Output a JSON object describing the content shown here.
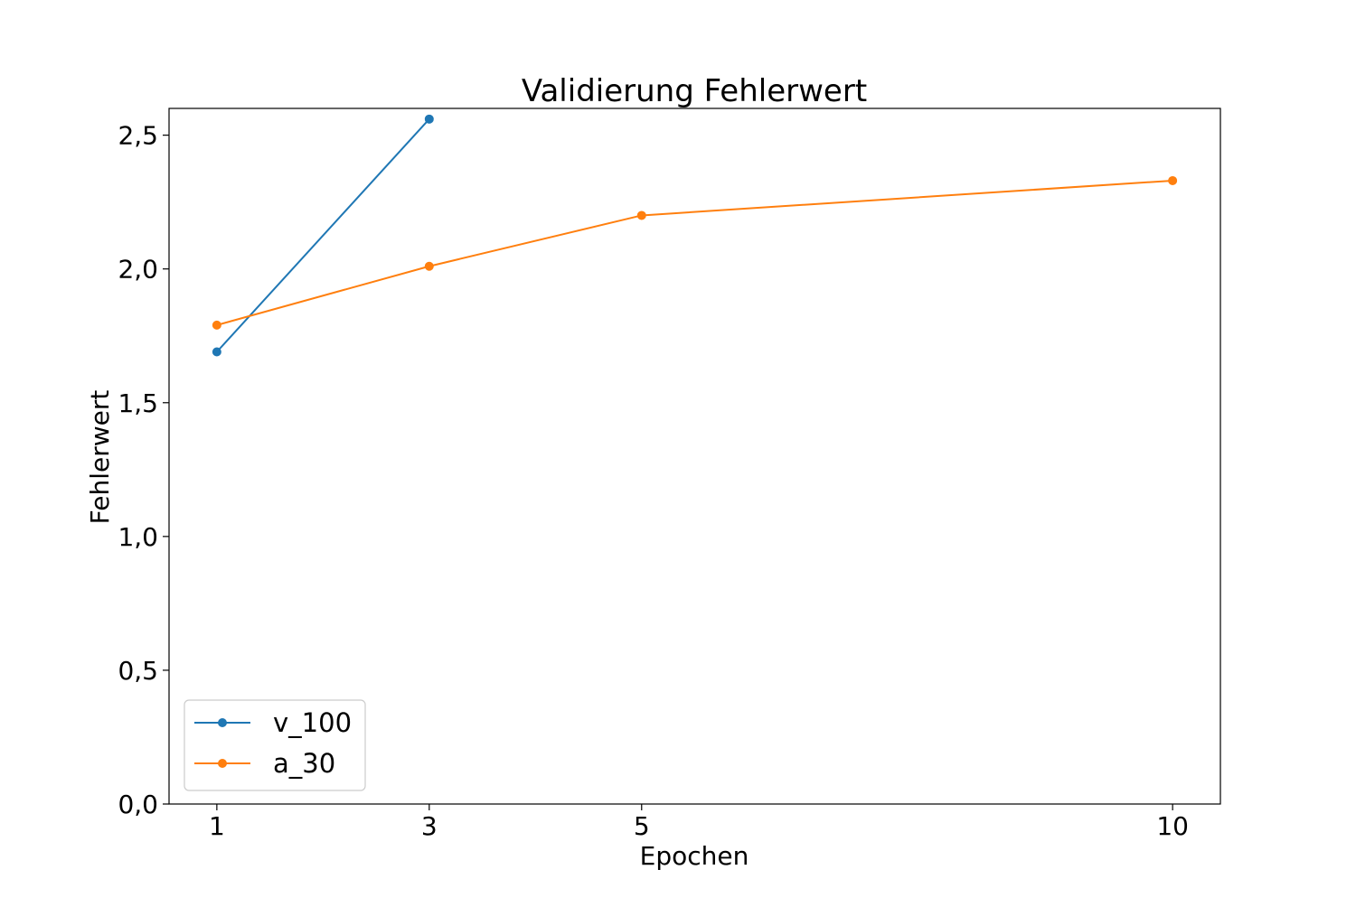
{
  "chart_data": {
    "type": "line",
    "title": "Validierung Fehlerwert",
    "xlabel": "Epochen",
    "ylabel": "Fehlerwert",
    "x_ticks": [
      1,
      3,
      5,
      10
    ],
    "x_tick_labels": [
      "1",
      "3",
      "5",
      "10"
    ],
    "xlim": [
      0.55,
      10.45
    ],
    "y_ticks": [
      0,
      0.5,
      1.0,
      1.5,
      2.0,
      2.5
    ],
    "y_tick_labels": [
      "0,0",
      "0,5",
      "1,0",
      "1,5",
      "2,0",
      "2,5"
    ],
    "ylim": [
      0,
      2.6
    ],
    "grid": false,
    "legend_position": "lower-left",
    "series": [
      {
        "name": "v_100",
        "color": "#1f77b4",
        "marker": "circle",
        "x": [
          1,
          3
        ],
        "y": [
          1.69,
          2.56
        ]
      },
      {
        "name": "a_30",
        "color": "#ff7f0e",
        "marker": "circle",
        "x": [
          1,
          3,
          5,
          10
        ],
        "y": [
          1.79,
          2.01,
          2.2,
          2.33
        ]
      }
    ]
  }
}
